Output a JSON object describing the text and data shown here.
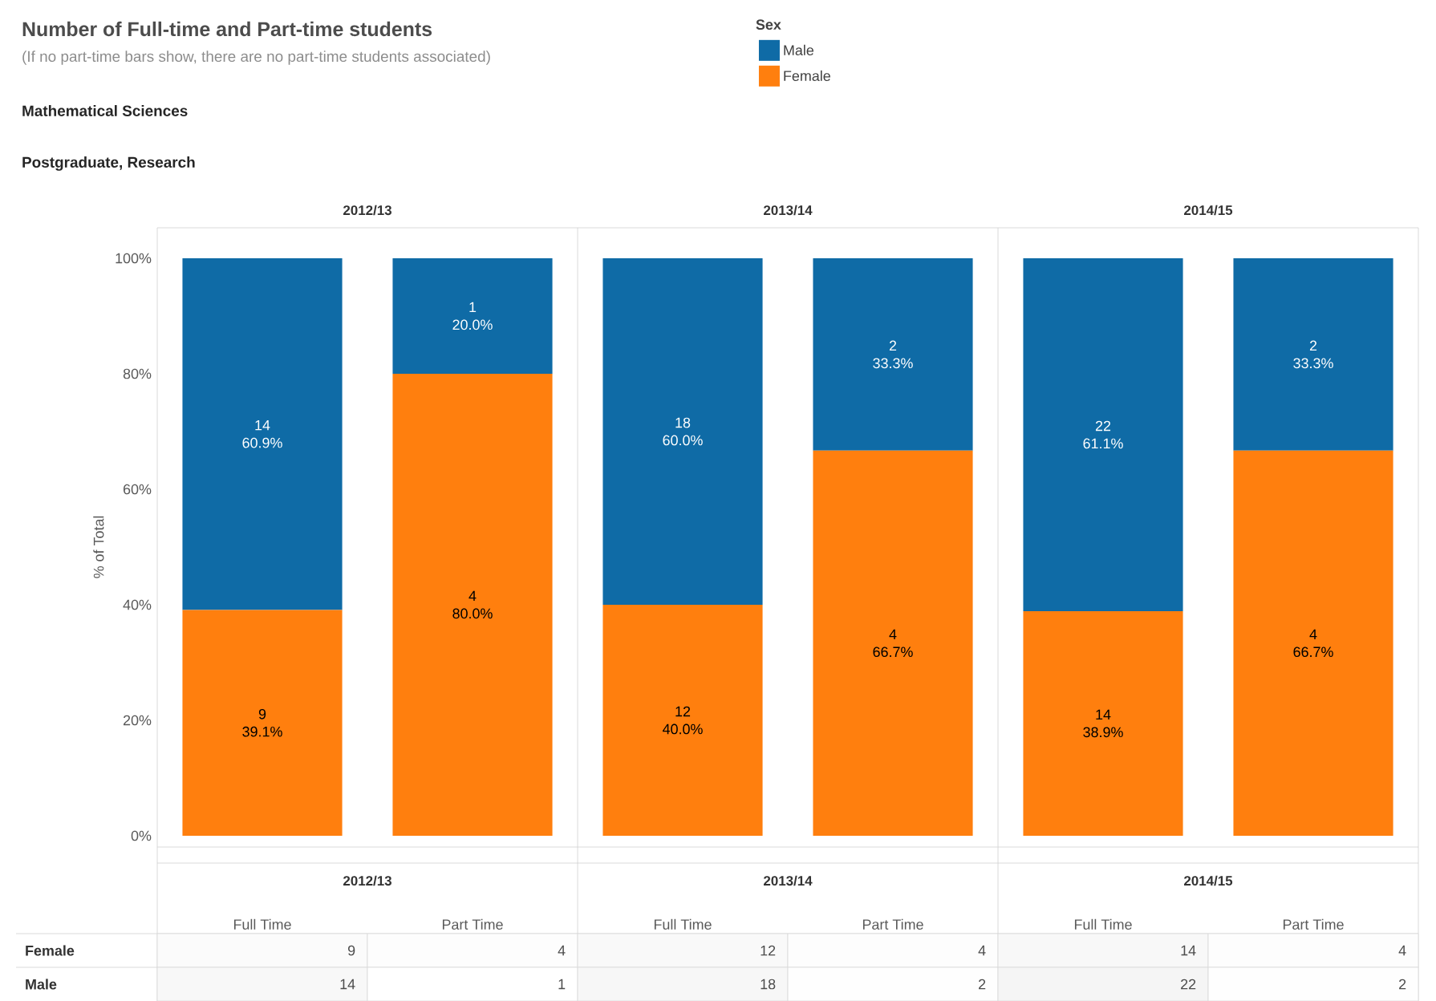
{
  "chart_data": [
    {
      "type": "other",
      "title": "Number of Full-time and Part-time students",
      "subtitle": "(If no part-time bars show, there are no part-time students associated)",
      "annotations": [
        "Mathematical Sciences",
        "Postgraduate, Research"
      ]
    },
    {
      "type": "bar",
      "stacked": true,
      "legend": "top",
      "legend_title": "Sex",
      "ylabel": "% of Total",
      "categories": [
        null,
        null,
        null,
        null,
        null,
        null
      ],
      "annotations": [
        "2012/13",
        "2013/14",
        "2014/15"
      ],
      "ylim": [
        0,
        100
      ],
      "yticks": [
        {
          "value": 0,
          "label": "0%"
        },
        {
          "value": 20,
          "label": "20%"
        },
        {
          "value": 40,
          "label": "40%"
        },
        {
          "value": 60,
          "label": "60%"
        },
        {
          "value": 80,
          "label": "80%"
        },
        {
          "value": 100,
          "label": "100%"
        }
      ],
      "tick_labels": "y",
      "series": [
        {
          "name": "Female",
          "color": "#ff7f0e",
          "values": [
            39.1,
            80.0,
            40.0,
            66.7,
            38.9,
            66.7
          ],
          "value_labels": [
            "9\n39.1%",
            "4\n80.0%",
            "12\n40.0%",
            "4\n66.7%",
            "14\n38.9%",
            "4\n66.7%"
          ]
        },
        {
          "name": "Male",
          "color": "#0f6ba6",
          "values": [
            60.9,
            20.0,
            60.0,
            33.3,
            61.1,
            33.3
          ],
          "value_labels": [
            "14\n60.9%",
            "1\n20.0%",
            "18\n60.0%",
            "2\n33.3%",
            "22\n61.1%",
            "2\n33.3%"
          ]
        }
      ]
    },
    {
      "type": "heatmap",
      "categories": [
        "Full Time",
        "Part Time",
        "Full Time",
        "Part Time",
        "Full Time",
        "Part Time"
      ],
      "annotations": [
        "2012/13",
        "2013/14",
        "2014/15"
      ],
      "y_categories": [
        "Female",
        "Male"
      ],
      "cells": [
        [
          9,
          4,
          12,
          4,
          14,
          4
        ],
        [
          14,
          1,
          18,
          2,
          22,
          2
        ]
      ],
      "cell_labels": [
        [
          "9",
          "4",
          "12",
          "4",
          "14",
          "4"
        ],
        [
          "14",
          "1",
          "18",
          "2",
          "22",
          "2"
        ]
      ]
    }
  ]
}
